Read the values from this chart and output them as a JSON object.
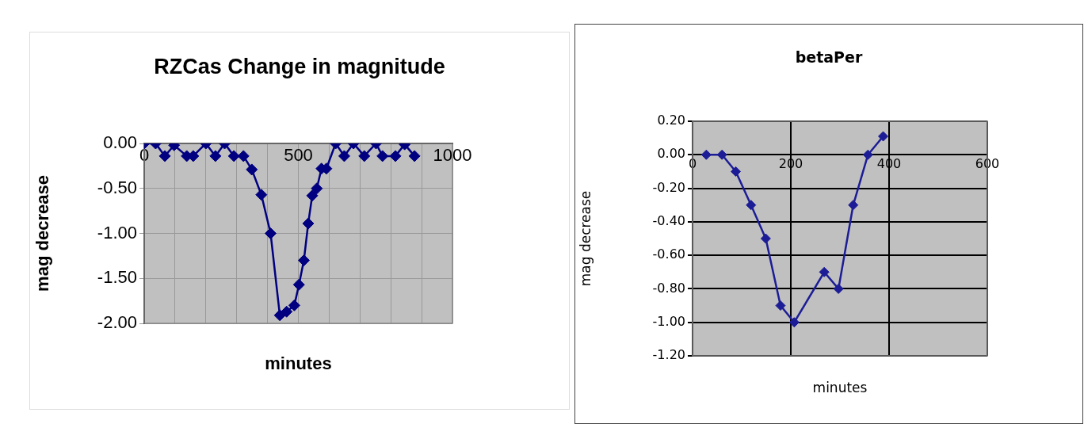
{
  "chart_data": [
    {
      "type": "line",
      "title": "RZCas  Change in magnitude",
      "xlabel": "minutes",
      "ylabel": "mag decrease",
      "marker": "diamond",
      "grid": true,
      "x": [
        0,
        37,
        67,
        97,
        138,
        159,
        200,
        231,
        261,
        291,
        322,
        349,
        380,
        410,
        440,
        462,
        487,
        502,
        518,
        532,
        545,
        560,
        575,
        591,
        621,
        649,
        679,
        714,
        752,
        773,
        815,
        845,
        877
      ],
      "series": [
        {
          "color": "#000080",
          "values": [
            0,
            0,
            -0.14,
            -0.02,
            -0.14,
            -0.14,
            0,
            -0.14,
            0,
            -0.14,
            -0.14,
            -0.29,
            -0.57,
            -1.0,
            -1.91,
            -1.87,
            -1.8,
            -1.57,
            -1.3,
            -0.89,
            -0.58,
            -0.5,
            -0.28,
            -0.28,
            0,
            -0.14,
            0,
            -0.14,
            0,
            -0.14,
            -0.14,
            -0.01,
            -0.14
          ]
        }
      ],
      "xlim": [
        0,
        1000
      ],
      "ylim": [
        -2,
        0
      ],
      "xticks": [
        0,
        {
          "value": 100,
          "label": null
        },
        {
          "value": 200,
          "label": null
        },
        {
          "value": 300,
          "label": null
        },
        {
          "value": 400,
          "label": null
        },
        500,
        {
          "value": 600,
          "label": null
        },
        {
          "value": 700,
          "label": null
        },
        {
          "value": 800,
          "label": null
        },
        {
          "value": 900,
          "label": null
        },
        1000
      ],
      "yticks": [
        {
          "value": 0,
          "label": "0.00"
        },
        {
          "value": -0.5,
          "label": "-0.50"
        },
        {
          "value": -1,
          "label": "-1.00"
        },
        {
          "value": -1.5,
          "label": "-1.50"
        },
        {
          "value": -2,
          "label": "-2.00"
        }
      ]
    },
    {
      "type": "line",
      "title": "betaPer",
      "xlabel": "minutes",
      "ylabel": "mag decrease",
      "marker": "diamond",
      "grid": true,
      "x": [
        28,
        60,
        88,
        119,
        149,
        179,
        207,
        268,
        297,
        327,
        357,
        388
      ],
      "series": [
        {
          "color": "#1c1c96",
          "values": [
            0,
            0,
            -0.1,
            -0.3,
            -0.5,
            -0.9,
            -1.0,
            -0.7,
            -0.8,
            -0.3,
            0,
            0.11
          ]
        }
      ],
      "xlim": [
        0,
        600
      ],
      "ylim": [
        -1.2,
        0.2
      ],
      "xticks": [
        0,
        200,
        400,
        600
      ],
      "yticks": [
        {
          "value": 0.2,
          "label": "0.20"
        },
        {
          "value": 0,
          "label": "0.00"
        },
        {
          "value": -0.2,
          "label": "-0.20"
        },
        {
          "value": -0.4,
          "label": "-0.40"
        },
        {
          "value": -0.6,
          "label": "-0.60"
        },
        {
          "value": -0.8,
          "label": "-0.80"
        },
        {
          "value": -1,
          "label": "-1.00"
        },
        {
          "value": -1.2,
          "label": "-1.20"
        }
      ]
    }
  ]
}
